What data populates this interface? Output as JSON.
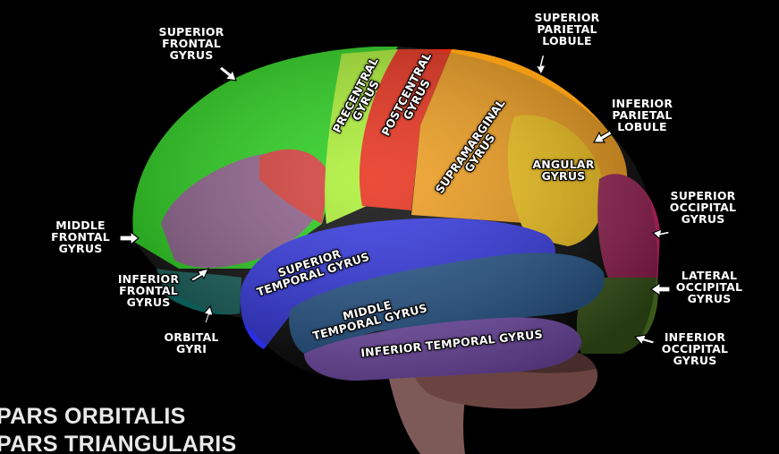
{
  "labels": {
    "superior_frontal": "SUPERIOR\nFRONTAL\nGYRUS",
    "superior_parietal": "SUPERIOR\nPARIETAL\nLOBULE",
    "inferior_parietal": "INFERIOR\nPARIETAL\nLOBULE",
    "precentral": "PRECENTRAL\nGYRUS",
    "postcentral": "POSTCENTRAL\nGYRUS",
    "supramarginal": "SUPRAMARGINAL\nGYRUS",
    "angular": "ANGULAR\nGYRUS",
    "superior_occipital": "SUPERIOR\nOCCIPITAL\nGYRUS",
    "middle_frontal": "MIDDLE\nFRONTAL\nGYRUS",
    "inferior_frontal": "INFERIOR\nFRONTAL\nGYRUS",
    "superior_temporal": "SUPERIOR\nTEMPORAL GYRUS",
    "lateral_occipital": "LATERAL\nOCCIPITAL\nGYRUS",
    "middle_temporal": "MIDDLE\nTEMPORAL GYRUS",
    "orbital": "ORBITAL\nGYRI",
    "inferior_temporal": "INFERIOR TEMPORAL GYRUS",
    "inferior_occipital": "INFERIOR\nOCCIPITAL\nGYRUS"
  },
  "captions": {
    "line1": "PARS ORBITALIS",
    "line2": "PARS TRIANGULARIS"
  },
  "colors": {
    "frontal": "#1fcf12",
    "precentral": "#a8f02a",
    "postcentral": "#e8250f",
    "parietal": "#f09a12",
    "angular": "#f2c010",
    "superior_temporal": "#2a2ee0",
    "middle_temporal": "#1d4f86",
    "inferior_temporal": "#7a4fb4",
    "occipital_sup": "#9a1d52",
    "occipital_lat": "#3b5a1a",
    "inferior_frontal": "#8a5a88",
    "orbital": "#0b5a55",
    "cerebellum": "#6b4442",
    "brainstem": "#7d5a58"
  }
}
